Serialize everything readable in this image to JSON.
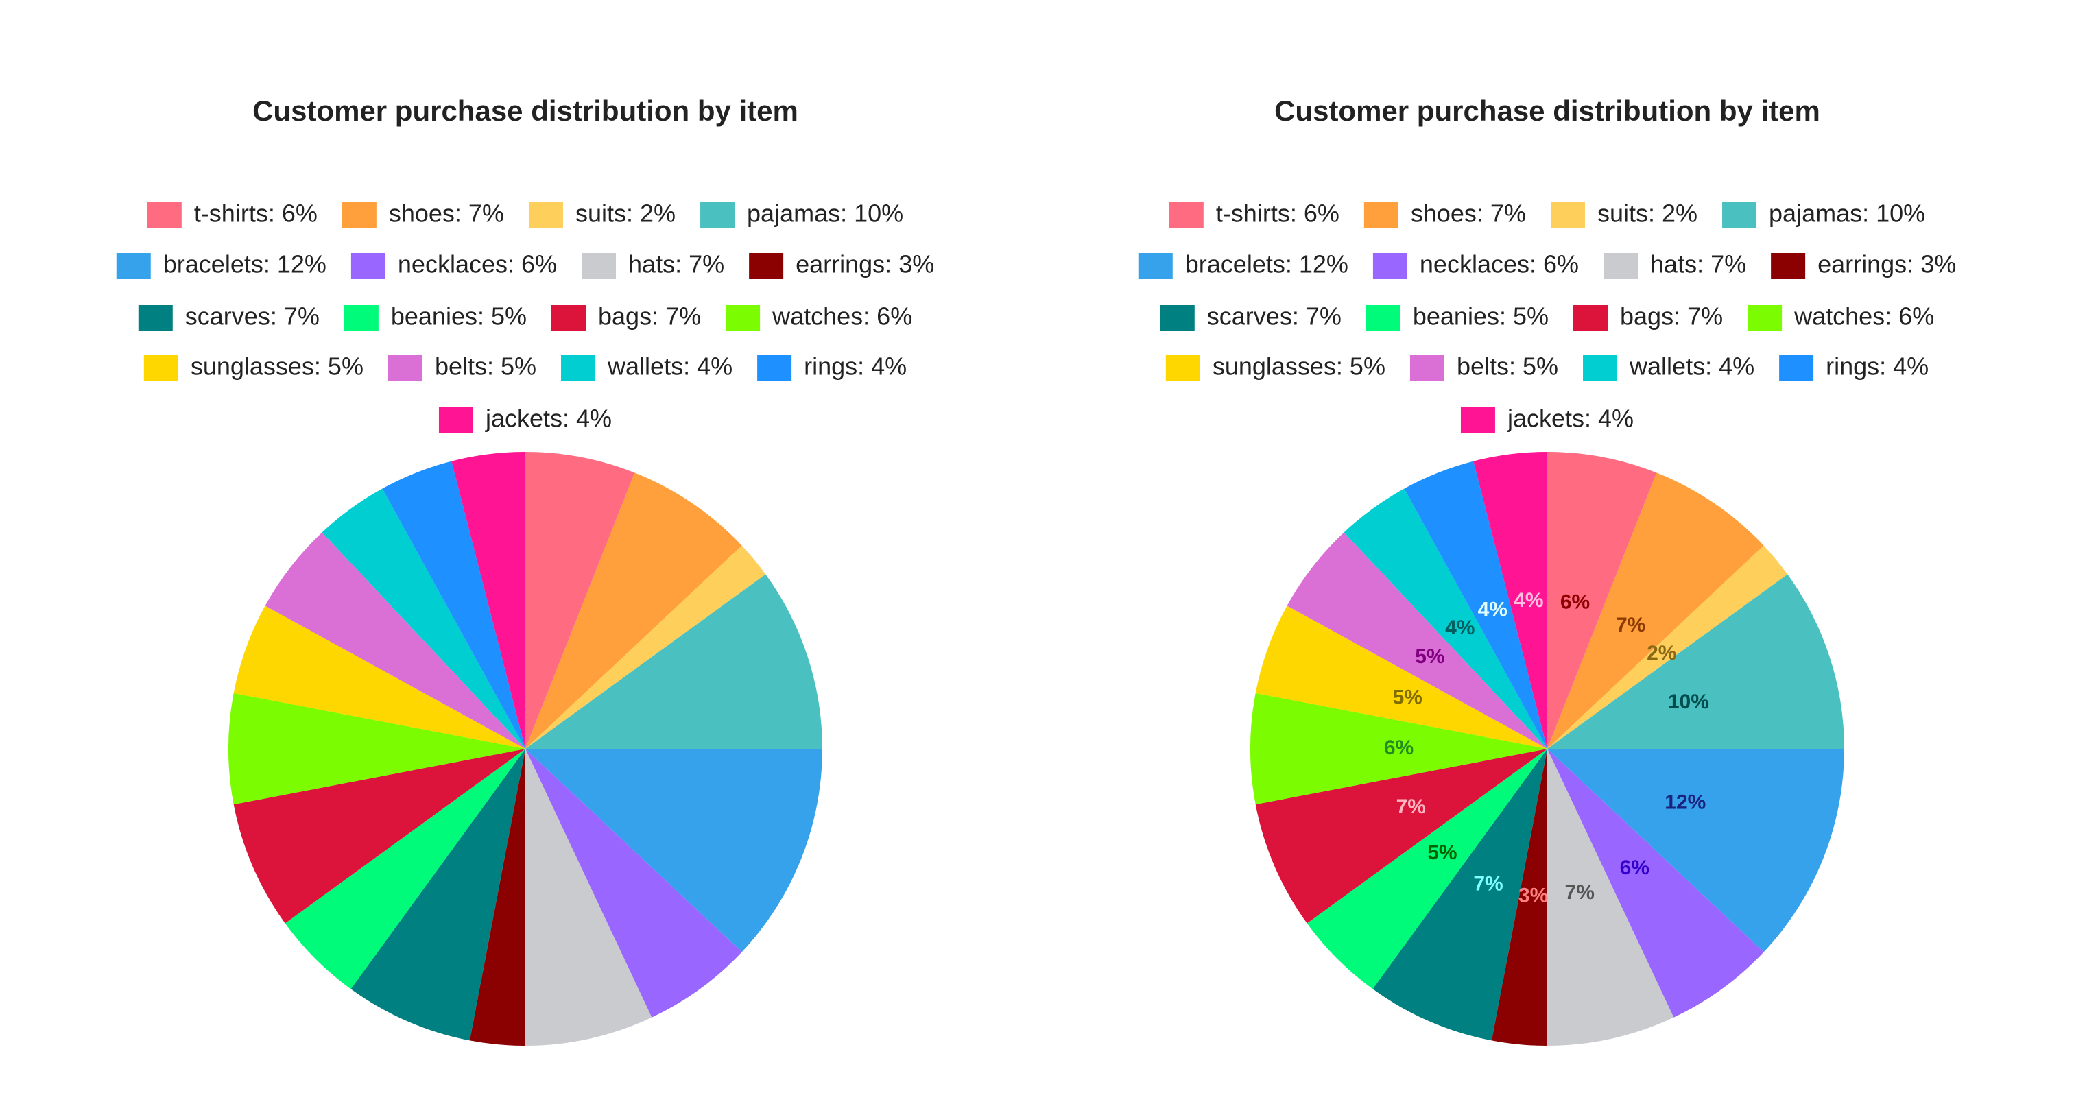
{
  "chart_data": [
    {
      "type": "pie",
      "title": "Customer purchase distribution by item",
      "categories": [
        "t-shirts: 6%",
        "shoes: 7%",
        "suits: 2%",
        "pajamas: 10%",
        "bracelets: 12%",
        "necklaces: 6%",
        "hats: 7%",
        "earrings: 3%",
        "scarves: 7%",
        "beanies: 5%",
        "bags: 7%",
        "watches: 6%",
        "sunglasses: 5%",
        "belts: 5%",
        "wallets: 4%",
        "rings: 4%",
        "jackets: 4%"
      ],
      "values": [
        6,
        7,
        2,
        10,
        12,
        6,
        7,
        3,
        7,
        5,
        7,
        6,
        5,
        5,
        4,
        4,
        4
      ],
      "colors": [
        "#ff6b81",
        "#ffa03c",
        "#ffcf5c",
        "#4bc0c0",
        "#36a2eb",
        "#9966ff",
        "#c9cbcf",
        "#8b0000",
        "#008080",
        "#00fa7a",
        "#dc143c",
        "#7cfc00",
        "#ffd700",
        "#da70d6",
        "#00ced1",
        "#1e90ff",
        "#ff1493"
      ],
      "data_labels": false
    },
    {
      "type": "pie",
      "title": "Customer purchase distribution by item",
      "categories": [
        "t-shirts: 6%",
        "shoes: 7%",
        "suits: 2%",
        "pajamas: 10%",
        "bracelets: 12%",
        "necklaces: 6%",
        "hats: 7%",
        "earrings: 3%",
        "scarves: 7%",
        "beanies: 5%",
        "bags: 7%",
        "watches: 6%",
        "sunglasses: 5%",
        "belts: 5%",
        "wallets: 4%",
        "rings: 4%",
        "jackets: 4%"
      ],
      "values": [
        6,
        7,
        2,
        10,
        12,
        6,
        7,
        3,
        7,
        5,
        7,
        6,
        5,
        5,
        4,
        4,
        4
      ],
      "value_labels": [
        "6%",
        "7%",
        "2%",
        "10%",
        "12%",
        "6%",
        "7%",
        "3%",
        "7%",
        "5%",
        "7%",
        "6%",
        "5%",
        "5%",
        "4%",
        "4%",
        "4%"
      ],
      "colors": [
        "#ff6b81",
        "#ffa03c",
        "#ffcf5c",
        "#4bc0c0",
        "#36a2eb",
        "#9966ff",
        "#c9cbcf",
        "#8b0000",
        "#008080",
        "#00fa7a",
        "#dc143c",
        "#7cfc00",
        "#ffd700",
        "#da70d6",
        "#00ced1",
        "#1e90ff",
        "#ff1493"
      ],
      "label_colors": [
        "#8b0000",
        "#8b3a00",
        "#8b6914",
        "#004d4d",
        "#1a237e",
        "#3300cc",
        "#555555",
        "#ff8080",
        "#80ffff",
        "#006400",
        "#ffb6c1",
        "#228b22",
        "#806c00",
        "#800080",
        "#005f5f",
        "#e0ffff",
        "#ffc0e0"
      ],
      "data_labels": true
    }
  ]
}
